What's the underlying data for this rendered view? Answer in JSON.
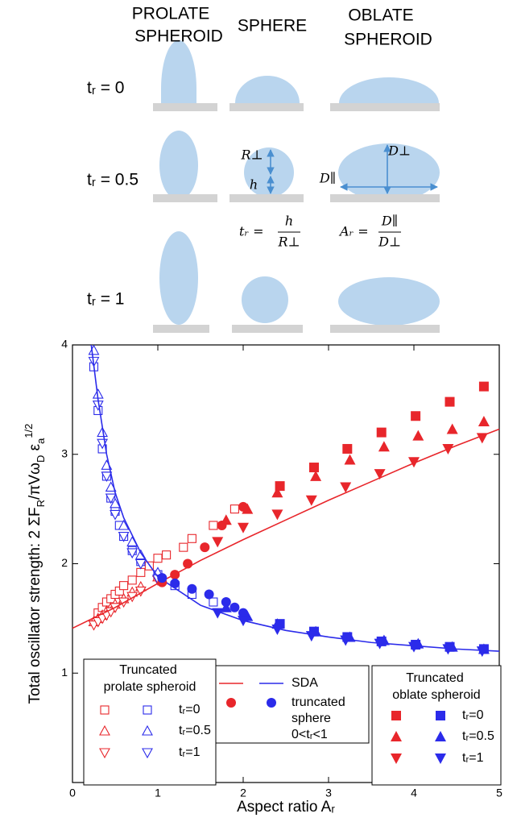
{
  "diagram": {
    "columns": [
      [
        "PROLATE",
        "SPHEROID"
      ],
      [
        "SPHERE"
      ],
      [
        "OBLATE",
        "SPHEROID"
      ]
    ],
    "rows": [
      "tᵣ = 0",
      "tᵣ = 0.5",
      "tᵣ = 1"
    ],
    "dimension_labels": {
      "r_perp": "R⊥",
      "h": "h",
      "d_perp": "D⊥",
      "d_par": "D∥"
    },
    "formulas": [
      {
        "lhs": "tᵣ =",
        "numerator": "h",
        "denominator": "R⊥"
      },
      {
        "lhs": "Aᵣ =",
        "numerator": "D∥",
        "denominator": "D⊥"
      }
    ]
  },
  "chart_data": {
    "type": "scatter",
    "x_label": "Aspect ratio Aᵣ",
    "y_label": [
      "Total oscillator strength: 2 ΣF",
      "R",
      "/πVω",
      "D",
      " ε",
      "a",
      "1/2"
    ],
    "xlim": [
      0,
      5
    ],
    "xticks": [
      0,
      1,
      2,
      3,
      4,
      5
    ],
    "ylim": [
      0,
      4
    ],
    "yticks": [
      1,
      2,
      3,
      4
    ],
    "groups": [
      {
        "title": [
          "Truncated",
          "prolate spheroid"
        ],
        "series": [
          {
            "name": "tᵣ=0",
            "marker": "open-square",
            "branches": [
              {
                "color": "#e8262b",
                "x": [
                  0.3,
                  0.35,
                  0.4,
                  0.45,
                  0.5,
                  0.55,
                  0.6,
                  0.7,
                  0.8,
                  0.9,
                  1.0,
                  1.1,
                  1.3,
                  1.4,
                  1.65,
                  1.9
                ],
                "values": [
                  1.55,
                  1.6,
                  1.65,
                  1.68,
                  1.72,
                  1.75,
                  1.8,
                  1.85,
                  1.92,
                  1.98,
                  2.05,
                  2.08,
                  2.15,
                  2.23,
                  2.35,
                  2.5
                ]
              },
              {
                "color": "#2b2bea",
                "x": [
                  0.25,
                  0.3,
                  0.35,
                  0.4,
                  0.45,
                  0.5,
                  0.55,
                  0.6,
                  0.7,
                  0.8,
                  1.0,
                  1.2,
                  1.4,
                  1.65
                ],
                "values": [
                  3.8,
                  3.4,
                  3.05,
                  2.8,
                  2.6,
                  2.48,
                  2.35,
                  2.25,
                  2.12,
                  2.02,
                  1.9,
                  1.8,
                  1.72,
                  1.65
                ]
              }
            ]
          },
          {
            "name": "tᵣ=0.5",
            "marker": "open-triangle-up",
            "branches": [
              {
                "color": "#e8262b",
                "x": [
                  0.25,
                  0.3,
                  0.35,
                  0.4,
                  0.45,
                  0.5,
                  0.6,
                  0.7,
                  0.8,
                  1.0
                ],
                "values": [
                  1.47,
                  1.5,
                  1.53,
                  1.57,
                  1.6,
                  1.63,
                  1.68,
                  1.74,
                  1.79,
                  1.88
                ]
              },
              {
                "color": "#2b2bea",
                "x": [
                  0.25,
                  0.3,
                  0.35,
                  0.4,
                  0.45,
                  0.5,
                  0.6,
                  0.7,
                  0.8,
                  1.0
                ],
                "values": [
                  3.95,
                  3.55,
                  3.2,
                  2.9,
                  2.7,
                  2.55,
                  2.35,
                  2.2,
                  2.08,
                  1.92
                ]
              }
            ]
          },
          {
            "name": "tᵣ=1",
            "marker": "open-triangle-down",
            "branches": [
              {
                "color": "#e8262b",
                "x": [
                  0.25,
                  0.3,
                  0.35,
                  0.4,
                  0.45,
                  0.5,
                  0.6,
                  0.7,
                  0.8,
                  1.0
                ],
                "values": [
                  1.44,
                  1.47,
                  1.5,
                  1.53,
                  1.56,
                  1.6,
                  1.65,
                  1.7,
                  1.75,
                  1.85
                ]
              },
              {
                "color": "#2b2bea",
                "x": [
                  0.25,
                  0.3,
                  0.35,
                  0.4,
                  0.45,
                  0.5,
                  0.6,
                  0.7,
                  0.8,
                  1.0
                ],
                "values": [
                  3.85,
                  3.45,
                  3.1,
                  2.8,
                  2.6,
                  2.45,
                  2.25,
                  2.1,
                  2.0,
                  1.86
                ]
              }
            ]
          }
        ]
      },
      {
        "series": [
          {
            "name": "SDA",
            "marker": "line",
            "branches": [
              {
                "color": "#e8262b",
                "x": [
                  0,
                  0.5,
                  1,
                  1.5,
                  2,
                  2.5,
                  3,
                  3.5,
                  4,
                  4.5,
                  5
                ],
                "values": [
                  1.41,
                  1.6,
                  1.82,
                  2.03,
                  2.22,
                  2.4,
                  2.58,
                  2.75,
                  2.92,
                  3.08,
                  3.23
                ]
              },
              {
                "color": "#2b2bea",
                "x": [
                  0.22,
                  0.3,
                  0.4,
                  0.5,
                  0.6,
                  0.8,
                  1,
                  1.5,
                  2,
                  2.5,
                  3,
                  3.5,
                  4,
                  4.5,
                  5
                ],
                "values": [
                  4,
                  3.5,
                  3.0,
                  2.65,
                  2.42,
                  2.1,
                  1.88,
                  1.62,
                  1.48,
                  1.39,
                  1.33,
                  1.28,
                  1.25,
                  1.22,
                  1.2
                ]
              }
            ]
          },
          {
            "name": [
              "truncated",
              "sphere",
              "0<tᵣ<1"
            ],
            "marker": "circle",
            "branches": [
              {
                "color": "#e8262b",
                "x": [
                  1.05,
                  1.2,
                  1.35,
                  1.55,
                  1.75,
                  2.0
                ],
                "values": [
                  1.83,
                  1.9,
                  2.0,
                  2.15,
                  2.35,
                  2.52
                ]
              },
              {
                "color": "#2b2bea",
                "x": [
                  1.05,
                  1.2,
                  1.4,
                  1.6,
                  1.8,
                  1.9,
                  2.0
                ],
                "values": [
                  1.87,
                  1.82,
                  1.77,
                  1.72,
                  1.65,
                  1.6,
                  1.55
                ]
              }
            ]
          }
        ]
      },
      {
        "title": [
          "Truncated",
          "oblate spheroid"
        ],
        "series": [
          {
            "name": "tᵣ=0",
            "marker": "square",
            "branches": [
              {
                "color": "#e8262b",
                "x": [
                  2.43,
                  2.83,
                  3.22,
                  3.62,
                  4.02,
                  4.42,
                  4.82
                ],
                "values": [
                  2.71,
                  2.88,
                  3.05,
                  3.2,
                  3.35,
                  3.48,
                  3.62
                ]
              },
              {
                "color": "#2b2bea",
                "x": [
                  2.43,
                  2.83,
                  3.22,
                  3.62,
                  4.02,
                  4.42,
                  4.82
                ],
                "values": [
                  1.45,
                  1.38,
                  1.33,
                  1.29,
                  1.26,
                  1.24,
                  1.22
                ]
              }
            ]
          },
          {
            "name": "tᵣ=0.5",
            "marker": "triangle-up",
            "branches": [
              {
                "color": "#e8262b",
                "x": [
                  1.8,
                  2.05,
                  2.4,
                  2.85,
                  3.25,
                  3.65,
                  4.05,
                  4.45,
                  4.82
                ],
                "values": [
                  2.4,
                  2.5,
                  2.65,
                  2.8,
                  2.95,
                  3.07,
                  3.17,
                  3.23,
                  3.3
                ]
              },
              {
                "color": "#2b2bea",
                "x": [
                  1.8,
                  2.05,
                  2.4,
                  2.85,
                  3.25,
                  3.65,
                  4.05,
                  4.45,
                  4.82
                ],
                "values": [
                  1.6,
                  1.52,
                  1.45,
                  1.38,
                  1.33,
                  1.3,
                  1.27,
                  1.24,
                  1.22
                ]
              }
            ]
          },
          {
            "name": "tᵣ=1",
            "marker": "triangle-down",
            "branches": [
              {
                "color": "#e8262b",
                "x": [
                  1.7,
                  2.0,
                  2.4,
                  2.8,
                  3.2,
                  3.6,
                  4.0,
                  4.4,
                  4.8
                ],
                "values": [
                  2.2,
                  2.33,
                  2.45,
                  2.58,
                  2.7,
                  2.82,
                  2.93,
                  3.05,
                  3.15
                ]
              },
              {
                "color": "#2b2bea",
                "x": [
                  1.7,
                  2.0,
                  2.4,
                  2.8,
                  3.2,
                  3.6,
                  4.0,
                  4.4,
                  4.8
                ],
                "values": [
                  1.55,
                  1.48,
                  1.4,
                  1.34,
                  1.3,
                  1.27,
                  1.24,
                  1.22,
                  1.2
                ]
              }
            ]
          }
        ]
      }
    ]
  }
}
